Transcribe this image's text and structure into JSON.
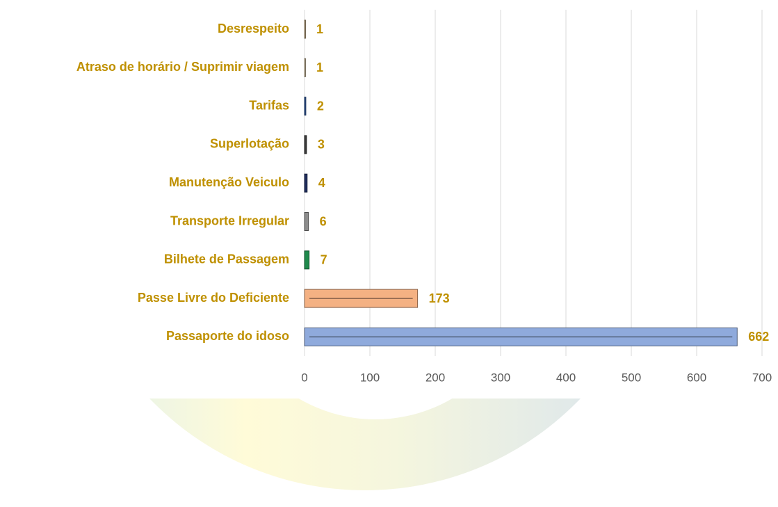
{
  "chart_data": {
    "type": "bar",
    "orientation": "horizontal",
    "categories": [
      "Desrespeito",
      "Atraso de horário / Suprimir viagem",
      "Tarifas",
      "Superlotação",
      "Manutenção Veiculo",
      "Transporte Irregular",
      "Bilhete de Passagem",
      "Passe Livre do Deficiente",
      "Passaporte do idoso"
    ],
    "values": [
      1,
      1,
      2,
      3,
      4,
      6,
      7,
      173,
      662
    ],
    "colors": [
      "#c9b48f",
      "#d6c7a8",
      "#2f5597",
      "#3a3a3a",
      "#1f2d5e",
      "#8c8c8c",
      "#1f8a4c",
      "#f4b183",
      "#8faadc"
    ],
    "xlim": [
      0,
      700
    ],
    "xticks": [
      0,
      100,
      200,
      300,
      400,
      500,
      600,
      700
    ],
    "grid": true
  }
}
